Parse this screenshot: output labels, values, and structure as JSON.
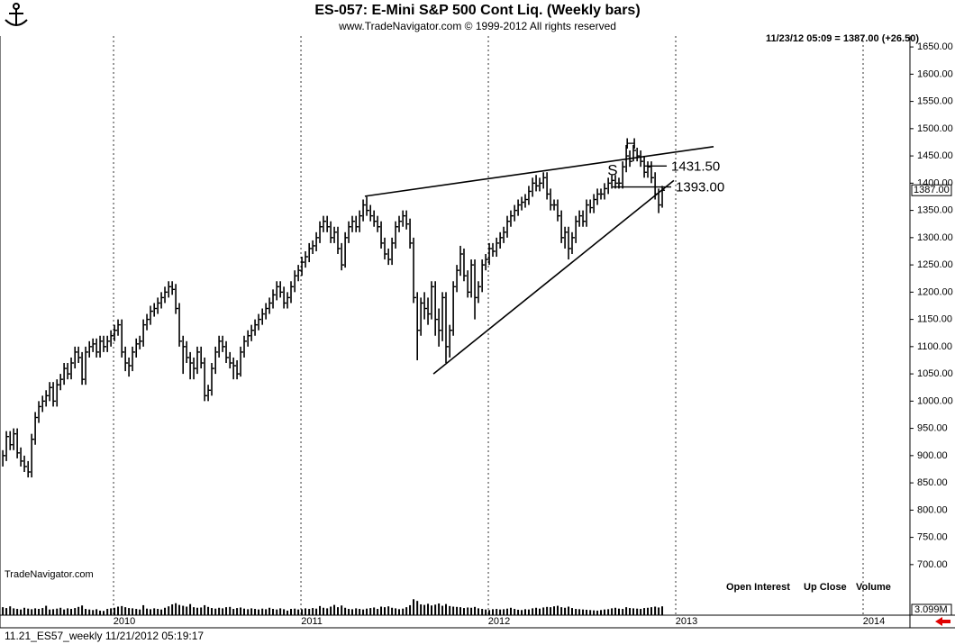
{
  "chart_data": {
    "type": "ohlc",
    "title": "ES-057:  E-Mini S&P 500 Cont Liq.  (Weekly bars)",
    "subtitle": "www.TradeNavigator.com © 1999-2012 All rights reserved",
    "quote": "11/23/12 05:09 = 1387.00 (+26.50)",
    "watermark": "TradeNavigator.com",
    "footer": "11.21_ES57_weekly   11/21/2012 05:19:17",
    "legend": [
      "Open Interest",
      "Up Close",
      "Volume"
    ],
    "color": "#000000",
    "xlim": [
      2009.394,
      2014.25
    ],
    "xticks": [
      2010,
      2011,
      2012,
      2013,
      2014
    ],
    "ylim": [
      670,
      1670
    ],
    "yticks": [
      {
        "value": 700,
        "label": "700.00"
      },
      {
        "value": 750,
        "label": "750.00"
      },
      {
        "value": 800,
        "label": "800.00"
      },
      {
        "value": 850,
        "label": "850.00"
      },
      {
        "value": 900,
        "label": "900.00"
      },
      {
        "value": 950,
        "label": "950.00"
      },
      {
        "value": 1000,
        "label": "1000.00"
      },
      {
        "value": 1050,
        "label": "1050.00"
      },
      {
        "value": 1100,
        "label": "1100.00"
      },
      {
        "value": 1150,
        "label": "1150.00"
      },
      {
        "value": 1200,
        "label": "1200.00"
      },
      {
        "value": 1250,
        "label": "1250.00"
      },
      {
        "value": 1300,
        "label": "1300.00"
      },
      {
        "value": 1350,
        "label": "1350.00"
      },
      {
        "value": 1400,
        "label": "1400.00"
      },
      {
        "value": 1450,
        "label": "1450.00"
      },
      {
        "value": 1500,
        "label": "1500.00"
      },
      {
        "value": 1550,
        "label": "1550.00"
      },
      {
        "value": 1600,
        "label": "1600.00"
      },
      {
        "value": 1650,
        "label": "1650.00"
      }
    ],
    "last_price": {
      "value": 1387,
      "label": "1387.00"
    },
    "vlim": [
      0,
      12
    ],
    "volume_label": {
      "value": 3.099,
      "label": "3.099M"
    },
    "x": [
      2009.409,
      2009.428,
      2009.448,
      2009.467,
      2009.486,
      2009.505,
      2009.524,
      2009.544,
      2009.563,
      2009.582,
      2009.601,
      2009.621,
      2009.64,
      2009.659,
      2009.678,
      2009.698,
      2009.717,
      2009.736,
      2009.755,
      2009.774,
      2009.794,
      2009.813,
      2009.832,
      2009.851,
      2009.871,
      2009.89,
      2009.909,
      2009.928,
      2009.947,
      2009.967,
      2009.986,
      2010.005,
      2010.024,
      2010.044,
      2010.063,
      2010.082,
      2010.101,
      2010.121,
      2010.14,
      2010.159,
      2010.178,
      2010.197,
      2010.217,
      2010.236,
      2010.255,
      2010.274,
      2010.294,
      2010.313,
      2010.332,
      2010.351,
      2010.371,
      2010.39,
      2010.409,
      2010.428,
      2010.447,
      2010.467,
      2010.486,
      2010.505,
      2010.524,
      2010.544,
      2010.563,
      2010.582,
      2010.601,
      2010.621,
      2010.64,
      2010.659,
      2010.678,
      2010.697,
      2010.717,
      2010.736,
      2010.755,
      2010.774,
      2010.794,
      2010.813,
      2010.832,
      2010.851,
      2010.871,
      2010.89,
      2010.909,
      2010.928,
      2010.947,
      2010.967,
      2010.986,
      2011.005,
      2011.024,
      2011.044,
      2011.063,
      2011.082,
      2011.101,
      2011.12,
      2011.14,
      2011.159,
      2011.178,
      2011.197,
      2011.217,
      2011.236,
      2011.255,
      2011.274,
      2011.294,
      2011.313,
      2011.332,
      2011.351,
      2011.371,
      2011.39,
      2011.409,
      2011.428,
      2011.447,
      2011.467,
      2011.486,
      2011.505,
      2011.524,
      2011.544,
      2011.563,
      2011.582,
      2011.601,
      2011.621,
      2011.64,
      2011.659,
      2011.678,
      2011.697,
      2011.717,
      2011.736,
      2011.755,
      2011.774,
      2011.794,
      2011.813,
      2011.832,
      2011.851,
      2011.87,
      2011.89,
      2011.909,
      2011.928,
      2011.947,
      2011.967,
      2011.986,
      2012.005,
      2012.024,
      2012.044,
      2012.063,
      2012.082,
      2012.101,
      2012.12,
      2012.14,
      2012.159,
      2012.178,
      2012.197,
      2012.216,
      2012.236,
      2012.255,
      2012.274,
      2012.294,
      2012.313,
      2012.332,
      2012.351,
      2012.37,
      2012.39,
      2012.409,
      2012.428,
      2012.447,
      2012.467,
      2012.486,
      2012.505,
      2012.524,
      2012.544,
      2012.563,
      2012.582,
      2012.601,
      2012.62,
      2012.64,
      2012.659,
      2012.678,
      2012.697,
      2012.717,
      2012.736,
      2012.755,
      2012.774,
      2012.794,
      2012.813,
      2012.832,
      2012.851,
      2012.87,
      2012.89,
      2012.909,
      2012.928
    ],
    "high": [
      910,
      945,
      945,
      950,
      950,
      915,
      900,
      890,
      940,
      980,
      1000,
      1010,
      1020,
      1035,
      1035,
      1040,
      1050,
      1070,
      1070,
      1080,
      1100,
      1100,
      1090,
      1100,
      1110,
      1115,
      1115,
      1120,
      1120,
      1120,
      1130,
      1140,
      1150,
      1150,
      1100,
      1080,
      1100,
      1115,
      1120,
      1150,
      1160,
      1175,
      1180,
      1190,
      1200,
      1210,
      1220,
      1220,
      1215,
      1180,
      1120,
      1110,
      1090,
      1080,
      1100,
      1100,
      1080,
      1030,
      1070,
      1100,
      1120,
      1120,
      1110,
      1090,
      1080,
      1075,
      1100,
      1120,
      1130,
      1140,
      1150,
      1160,
      1170,
      1180,
      1190,
      1205,
      1220,
      1220,
      1210,
      1200,
      1220,
      1240,
      1250,
      1265,
      1275,
      1290,
      1295,
      1310,
      1330,
      1340,
      1340,
      1330,
      1320,
      1320,
      1290,
      1310,
      1330,
      1340,
      1340,
      1350,
      1370,
      1375,
      1360,
      1350,
      1340,
      1330,
      1300,
      1280,
      1300,
      1330,
      1340,
      1350,
      1350,
      1335,
      1300,
      1200,
      1190,
      1200,
      1190,
      1220,
      1220,
      1170,
      1200,
      1200,
      1140,
      1220,
      1250,
      1285,
      1280,
      1240,
      1260,
      1260,
      1220,
      1260,
      1270,
      1290,
      1290,
      1300,
      1310,
      1320,
      1340,
      1350,
      1360,
      1370,
      1375,
      1380,
      1395,
      1410,
      1415,
      1410,
      1420,
      1420,
      1390,
      1370,
      1370,
      1350,
      1320,
      1320,
      1310,
      1340,
      1350,
      1350,
      1370,
      1370,
      1380,
      1390,
      1390,
      1400,
      1410,
      1415,
      1415,
      1410,
      1440,
      1470,
      1460,
      1470,
      1465,
      1460,
      1450,
      1440,
      1440,
      1420,
      1390,
      1395
    ],
    "low": [
      880,
      890,
      910,
      910,
      895,
      880,
      870,
      860,
      860,
      920,
      960,
      980,
      990,
      1000,
      990,
      990,
      1020,
      1030,
      1040,
      1040,
      1060,
      1070,
      1030,
      1030,
      1080,
      1090,
      1080,
      1080,
      1090,
      1090,
      1100,
      1110,
      1120,
      1080,
      1055,
      1045,
      1055,
      1080,
      1095,
      1100,
      1130,
      1140,
      1155,
      1160,
      1170,
      1180,
      1190,
      1195,
      1160,
      1100,
      1050,
      1070,
      1040,
      1040,
      1050,
      1060,
      1000,
      1000,
      1010,
      1050,
      1080,
      1090,
      1070,
      1060,
      1040,
      1040,
      1045,
      1080,
      1100,
      1110,
      1120,
      1130,
      1140,
      1150,
      1160,
      1170,
      1185,
      1190,
      1170,
      1170,
      1180,
      1200,
      1220,
      1230,
      1245,
      1255,
      1270,
      1275,
      1290,
      1310,
      1310,
      1290,
      1290,
      1270,
      1240,
      1245,
      1290,
      1310,
      1310,
      1310,
      1330,
      1340,
      1330,
      1320,
      1310,
      1280,
      1260,
      1250,
      1250,
      1280,
      1310,
      1320,
      1315,
      1280,
      1180,
      1075,
      1120,
      1150,
      1140,
      1150,
      1120,
      1100,
      1110,
      1070,
      1080,
      1120,
      1200,
      1230,
      1220,
      1190,
      1190,
      1150,
      1180,
      1200,
      1240,
      1250,
      1265,
      1265,
      1280,
      1290,
      1300,
      1320,
      1330,
      1340,
      1350,
      1355,
      1360,
      1375,
      1385,
      1385,
      1390,
      1370,
      1350,
      1350,
      1330,
      1290,
      1280,
      1260,
      1270,
      1290,
      1320,
      1320,
      1320,
      1345,
      1345,
      1360,
      1370,
      1370,
      1380,
      1390,
      1390,
      1390,
      1390,
      1420,
      1430,
      1440,
      1440,
      1430,
      1410,
      1410,
      1400,
      1370,
      1345,
      1355
    ],
    "close": [
      900,
      935,
      920,
      940,
      905,
      890,
      880,
      870,
      930,
      970,
      990,
      1000,
      1010,
      1025,
      1000,
      1030,
      1040,
      1060,
      1050,
      1070,
      1090,
      1080,
      1040,
      1090,
      1100,
      1105,
      1090,
      1110,
      1100,
      1110,
      1120,
      1130,
      1140,
      1090,
      1070,
      1065,
      1090,
      1105,
      1110,
      1140,
      1150,
      1165,
      1170,
      1180,
      1190,
      1200,
      1210,
      1205,
      1170,
      1110,
      1100,
      1080,
      1070,
      1060,
      1090,
      1070,
      1010,
      1020,
      1060,
      1090,
      1110,
      1100,
      1080,
      1070,
      1065,
      1050,
      1090,
      1110,
      1120,
      1130,
      1140,
      1150,
      1160,
      1170,
      1180,
      1195,
      1210,
      1200,
      1180,
      1190,
      1210,
      1230,
      1240,
      1255,
      1265,
      1280,
      1285,
      1300,
      1320,
      1330,
      1320,
      1300,
      1310,
      1280,
      1250,
      1300,
      1320,
      1330,
      1320,
      1340,
      1360,
      1350,
      1340,
      1330,
      1320,
      1290,
      1270,
      1260,
      1290,
      1320,
      1330,
      1340,
      1325,
      1290,
      1190,
      1130,
      1180,
      1170,
      1160,
      1210,
      1150,
      1130,
      1190,
      1100,
      1130,
      1210,
      1240,
      1270,
      1230,
      1200,
      1250,
      1190,
      1210,
      1250,
      1260,
      1280,
      1275,
      1290,
      1300,
      1310,
      1330,
      1340,
      1350,
      1360,
      1365,
      1370,
      1385,
      1400,
      1395,
      1400,
      1410,
      1380,
      1360,
      1360,
      1340,
      1300,
      1310,
      1280,
      1300,
      1330,
      1340,
      1330,
      1360,
      1355,
      1370,
      1380,
      1380,
      1390,
      1400,
      1405,
      1400,
      1400,
      1430,
      1450,
      1440,
      1460,
      1450,
      1440,
      1420,
      1430,
      1410,
      1380,
      1360,
      1387
    ],
    "volume": [
      2.8,
      2.5,
      3.1,
      2.4,
      2.2,
      2.0,
      2.6,
      2.3,
      2.1,
      2.4,
      2.2,
      2.5,
      3.3,
      2.0,
      2.1,
      2.3,
      2.6,
      2.0,
      2.4,
      2.2,
      2.5,
      2.9,
      3.4,
      2.2,
      2.0,
      1.8,
      2.1,
      1.6,
      1.5,
      2.2,
      2.4,
      2.6,
      3.0,
      3.2,
      2.8,
      2.5,
      2.4,
      2.2,
      2.0,
      3.5,
      2.3,
      2.1,
      2.4,
      2.2,
      2.0,
      2.6,
      3.1,
      3.8,
      4.2,
      3.6,
      3.3,
      3.0,
      3.9,
      2.8,
      2.6,
      2.7,
      3.5,
      2.9,
      2.5,
      2.3,
      2.6,
      2.4,
      2.8,
      2.9,
      2.2,
      2.5,
      2.7,
      2.3,
      2.1,
      2.4,
      2.2,
      2.0,
      2.3,
      2.1,
      2.6,
      2.2,
      2.0,
      2.4,
      2.1,
      1.6,
      2.2,
      2.3,
      2.0,
      2.1,
      2.4,
      2.2,
      2.5,
      2.3,
      3.2,
      2.6,
      2.4,
      3.0,
      3.6,
      2.8,
      3.4,
      2.6,
      2.2,
      2.1,
      2.4,
      2.2,
      2.0,
      2.3,
      2.5,
      2.7,
      2.2,
      3.0,
      2.8,
      3.1,
      2.6,
      2.4,
      2.1,
      2.3,
      2.8,
      3.5,
      5.6,
      5.0,
      3.8,
      3.6,
      4.0,
      3.4,
      3.7,
      4.1,
      3.3,
      3.9,
      3.2,
      3.0,
      2.9,
      2.8,
      2.5,
      2.7,
      2.6,
      2.9,
      2.4,
      2.2,
      2.0,
      1.8,
      2.1,
      2.2,
      2.0,
      2.1,
      2.3,
      2.6,
      2.2,
      1.9,
      1.8,
      2.1,
      2.0,
      2.4,
      2.6,
      2.3,
      2.7,
      2.9,
      2.8,
      3.1,
      3.3,
      2.8,
      2.6,
      3.0,
      2.5,
      2.2,
      2.1,
      2.0,
      1.9,
      1.8,
      1.7,
      1.6,
      1.8,
      2.0,
      2.1,
      2.4,
      2.6,
      2.3,
      2.2,
      2.8,
      2.5,
      2.4,
      2.3,
      2.2,
      2.5,
      2.6,
      2.8,
      3.0,
      2.7,
      3.099
    ],
    "trendlines": [
      {
        "x": [
          2011.341,
          2013.202
        ],
        "y": [
          1376,
          1467
        ]
      },
      {
        "x": [
          2011.707,
          2012.99
        ],
        "y": [
          1050,
          1405
        ]
      }
    ],
    "price_lines": [
      {
        "value": 1431.5,
        "label": "1431.50",
        "x": [
          2012.832,
          2012.952
        ]
      },
      {
        "value": 1393,
        "label": "1393.00",
        "x": [
          2012.663,
          2012.976
        ]
      }
    ],
    "annotations": [
      {
        "text": "H",
        "x": 2012.76,
        "y": 1471
      },
      {
        "text": "S",
        "x": 2012.663,
        "y": 1422
      }
    ]
  }
}
